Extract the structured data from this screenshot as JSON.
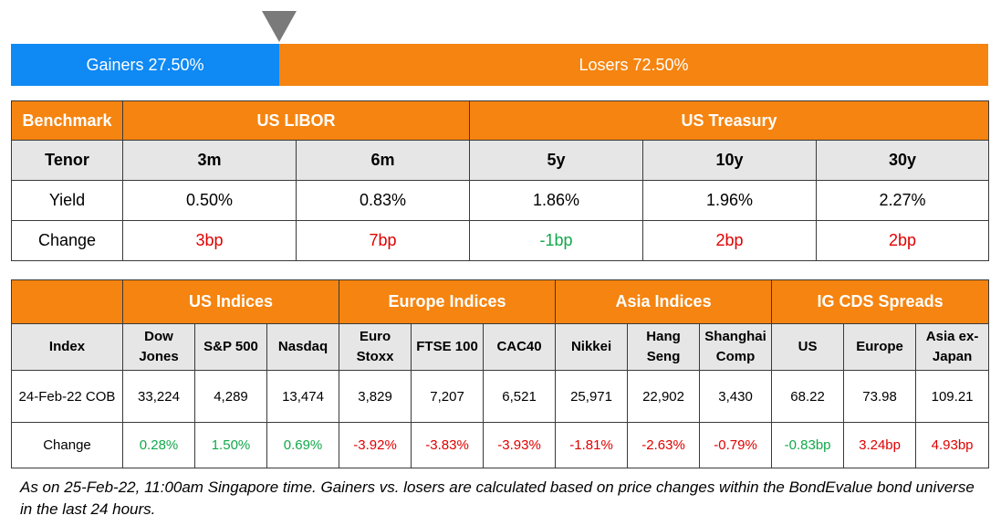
{
  "breadth": {
    "gainers_label": "Gainers 27.50%",
    "losers_label": "Losers 72.50%",
    "gainers_pct": 27.5,
    "losers_pct": 72.5
  },
  "rates": {
    "benchmark_label": "Benchmark",
    "libor_label": "US LIBOR",
    "treasury_label": "US Treasury",
    "tenor_label": "Tenor",
    "tenors": [
      "3m",
      "6m",
      "5y",
      "10y",
      "30y"
    ],
    "yield_label": "Yield",
    "yields": [
      "0.50%",
      "0.83%",
      "1.86%",
      "1.96%",
      "2.27%"
    ],
    "change_label": "Change",
    "changes": [
      "3bp",
      "7bp",
      "-1bp",
      "2bp",
      "2bp"
    ],
    "change_colors": [
      "#e00000",
      "#e00000",
      "#12a84a",
      "#e00000",
      "#e00000"
    ]
  },
  "indices": {
    "index_label": "Index",
    "groups": [
      "US Indices",
      "Europe Indices",
      "Asia Indices",
      "IG CDS Spreads"
    ],
    "columns": [
      [
        "Dow",
        "Jones"
      ],
      [
        "S&P 500"
      ],
      [
        "Nasdaq"
      ],
      [
        "Euro",
        "Stoxx"
      ],
      [
        "FTSE 100"
      ],
      [
        "CAC40"
      ],
      [
        "Nikkei"
      ],
      [
        "Hang",
        "Seng"
      ],
      [
        "Shanghai",
        "Comp"
      ],
      [
        "US"
      ],
      [
        "Europe"
      ],
      [
        "Asia ex-",
        "Japan"
      ]
    ],
    "close_label": "24-Feb-22 COB",
    "close_values": [
      "33,224",
      "4,289",
      "13,474",
      "3,829",
      "7,207",
      "6,521",
      "25,971",
      "22,902",
      "3,430",
      "68.22",
      "73.98",
      "109.21"
    ],
    "change_label": "Change",
    "changes": [
      "0.28%",
      "1.50%",
      "0.69%",
      "-3.92%",
      "-3.83%",
      "-3.93%",
      "-1.81%",
      "-2.63%",
      "-0.79%",
      "-0.83bp",
      "3.24bp",
      "4.93bp"
    ],
    "change_colors": [
      "#12a84a",
      "#12a84a",
      "#12a84a",
      "#e00000",
      "#e00000",
      "#e00000",
      "#e00000",
      "#e00000",
      "#e00000",
      "#12a84a",
      "#e00000",
      "#e00000"
    ]
  },
  "footnote": "As on 25-Feb-22, 11:00am Singapore time. Gainers vs. losers are calculated based on price changes within the BondEvalue bond universe in the last 24 hours."
}
